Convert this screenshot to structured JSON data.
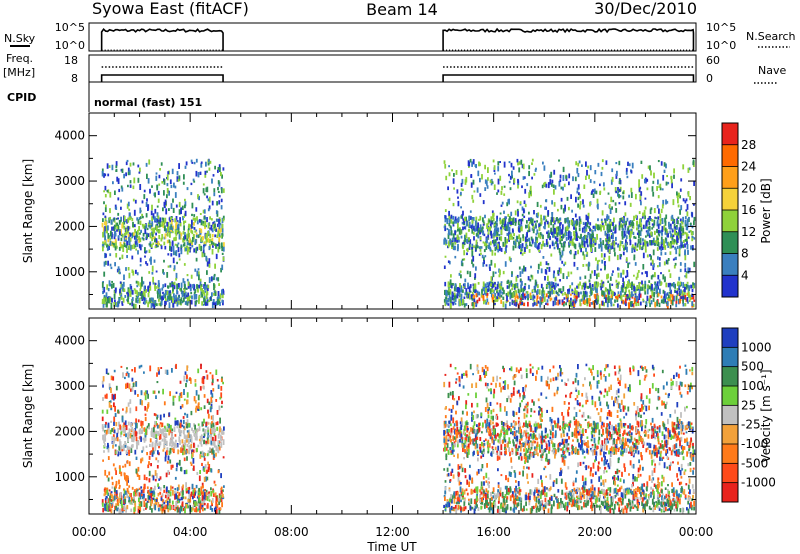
{
  "header": {
    "station": "Syowa East (fitACF)",
    "beam": "Beam 14",
    "date": "30/Dec/2010"
  },
  "status_panels": {
    "nsky_label": "N.Sky",
    "nsky_ticks": [
      "10^5",
      "10^0"
    ],
    "nsearch_label": "N.Search",
    "freq_label_line1": "Freq.",
    "freq_label_line2": "[MHz]",
    "freq_ticks": [
      "18",
      "8"
    ],
    "nave_label": "Nave",
    "nave_ticks": [
      "60",
      "0"
    ],
    "cpid_label": "CPID",
    "cpid_text": "normal (fast) 151"
  },
  "chart_data": [
    {
      "type": "heatmap",
      "panel": "power",
      "ylabel": "Slant Range [km]",
      "ylim": [
        180,
        4500
      ],
      "y_ticks": [
        "4000",
        "3000",
        "2000",
        "1000"
      ],
      "y_tick_values": [
        4000,
        3000,
        2000,
        1000
      ],
      "xlim_hours": [
        0,
        24
      ],
      "x_ticks": [
        "00:00",
        "04:00",
        "08:00",
        "12:00",
        "16:00",
        "20:00",
        "00:00"
      ],
      "x_tick_hours": [
        0,
        4,
        8,
        12,
        16,
        20,
        24
      ],
      "data_intervals_hours": [
        [
          0.5,
          5.3
        ],
        [
          14.0,
          23.9
        ]
      ],
      "colorbar": {
        "label": "Power [dB]",
        "tick_labels": [
          "28",
          "24",
          "20",
          "16",
          "12",
          "8",
          "4"
        ],
        "colors": [
          "#e8231c",
          "#ff6a00",
          "#ff9f1a",
          "#f5d23a",
          "#8fd23a",
          "#2f8f56",
          "#3a7fbf",
          "#2233cc"
        ]
      }
    },
    {
      "type": "heatmap",
      "panel": "velocity",
      "ylabel": "Slant Range [km]",
      "ylim": [
        180,
        4500
      ],
      "y_ticks": [
        "4000",
        "3000",
        "2000",
        "1000"
      ],
      "y_tick_values": [
        4000,
        3000,
        2000,
        1000
      ],
      "xlim_hours": [
        0,
        24
      ],
      "x_ticks": [
        "00:00",
        "04:00",
        "08:00",
        "12:00",
        "16:00",
        "20:00",
        "00:00"
      ],
      "x_tick_hours": [
        0,
        4,
        8,
        12,
        16,
        20,
        24
      ],
      "xlabel": "Time UT",
      "data_intervals_hours": [
        [
          0.5,
          5.3
        ],
        [
          14.0,
          23.9
        ]
      ],
      "colorbar": {
        "label": "Velocity [m s⁻¹]",
        "tick_labels": [
          "1000",
          "500",
          "100",
          "25",
          "-25",
          "-100",
          "-500",
          "-1000"
        ],
        "colors": [
          "#1f3fbf",
          "#2e7db5",
          "#3c8f4f",
          "#6ccf3a",
          "#c0c0c0",
          "#f2a13a",
          "#ff7a1a",
          "#ff4a1a",
          "#e8231c"
        ]
      }
    }
  ]
}
